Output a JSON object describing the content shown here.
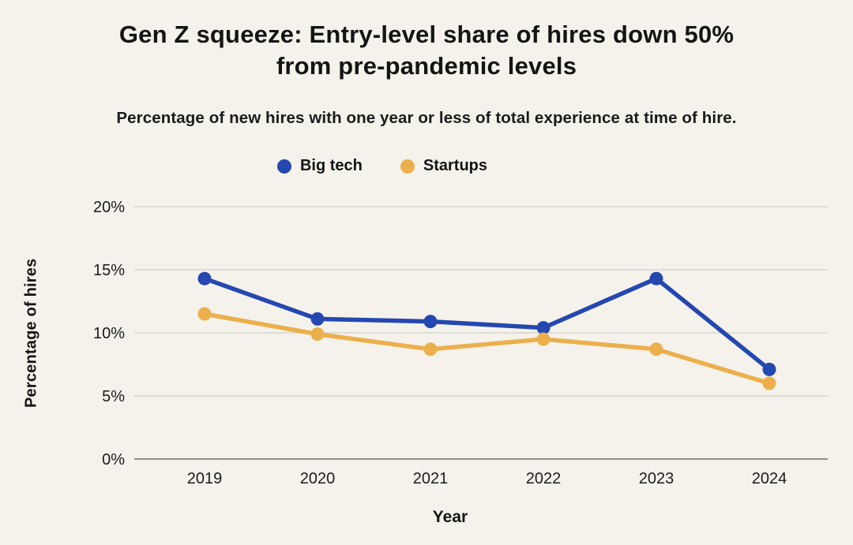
{
  "header": {
    "title_line1": "Gen Z squeeze: Entry-level share of hires down 50%",
    "title_line2": "from pre-pandemic levels",
    "subtitle": "Percentage of new hires with one year or less of total experience at time of hire."
  },
  "colors": {
    "background": "#f5f2ec",
    "text": "#141414",
    "gridline": "#d8d5cf",
    "axis_line": "#8f8d88"
  },
  "chart_data": {
    "type": "line",
    "title": "Gen Z squeeze: Entry-level share of hires down 50% from pre-pandemic levels",
    "subtitle": "Percentage of new hires with one year or less of total experience at time of hire.",
    "categories": [
      "2019",
      "2020",
      "2021",
      "2022",
      "2023",
      "2024"
    ],
    "series": [
      {
        "name": "Big tech",
        "color": "#2447b0",
        "values": [
          14.3,
          11.1,
          10.9,
          10.4,
          14.3,
          7.1
        ]
      },
      {
        "name": "Startups",
        "color": "#ebb04c",
        "values": [
          11.5,
          9.9,
          8.7,
          9.5,
          8.7,
          6.0
        ]
      }
    ],
    "xlabel": "Year",
    "ylabel": "Percentage of hires",
    "ylim": [
      0,
      20
    ],
    "yticks": [
      0,
      5,
      10,
      15,
      20
    ],
    "ytick_labels": [
      "0%",
      "5%",
      "10%",
      "15%",
      "20%"
    ],
    "grid": true,
    "legend_position": "top"
  }
}
